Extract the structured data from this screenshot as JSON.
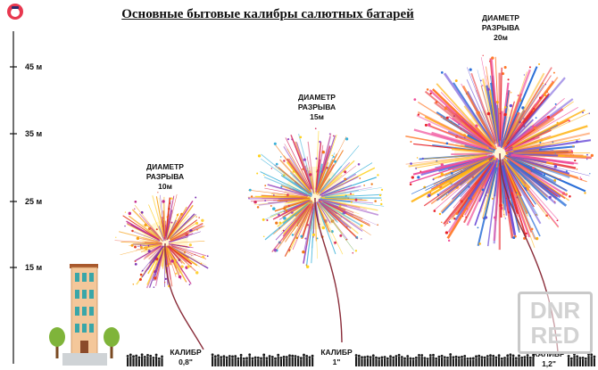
{
  "title": "Основные бытовые калибры салютных батарей",
  "axis": {
    "ticks": [
      "45 м",
      "35 м",
      "25 м",
      "15 м"
    ]
  },
  "fireworks": [
    {
      "diameter_label": [
        "ДИАМЕТР",
        "РАЗРЫВА",
        "10м"
      ],
      "caliber_label": [
        "КАЛИБР",
        "0,8\""
      ],
      "colors": [
        "#f7a31c",
        "#e63a1f",
        "#c42b8c",
        "#ffd23a",
        "#7a2fb0"
      ]
    },
    {
      "diameter_label": [
        "ДИАМЕТР",
        "РАЗРЫВА",
        "15м"
      ],
      "caliber_label": [
        "КАЛИБР",
        "1\""
      ],
      "colors": [
        "#ffd21f",
        "#f07a1a",
        "#d83262",
        "#37b0d9",
        "#9a4fc4"
      ]
    },
    {
      "diameter_label": [
        "ДИАМЕТР",
        "РАЗРЫВА",
        "20м"
      ],
      "caliber_label": [
        "КАЛИБР",
        "1,2\""
      ],
      "colors": [
        "#f04e9a",
        "#ffb516",
        "#e8242a",
        "#6d4fd8",
        "#ff7a2a",
        "#2a6fd8"
      ]
    }
  ],
  "watermark": [
    "DNR",
    "RED"
  ]
}
